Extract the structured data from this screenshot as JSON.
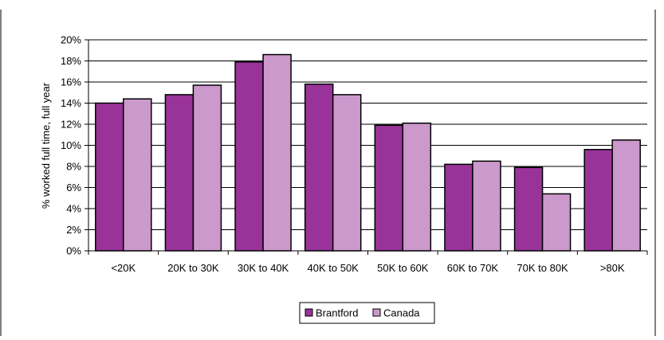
{
  "chart_data": {
    "type": "bar",
    "title": "",
    "xlabel": "",
    "ylabel": "% worked full time, full year",
    "categories": [
      "<20K",
      "20K to 30K",
      "30K to 40K",
      "40K to 50K",
      "50K to 60K",
      "60K to 70K",
      "70K to 80K",
      ">80K"
    ],
    "series": [
      {
        "name": "Brantford",
        "color": "#993399",
        "values": [
          14.0,
          14.8,
          17.9,
          15.8,
          11.9,
          8.2,
          7.9,
          9.6
        ]
      },
      {
        "name": "Canada",
        "color": "#CC99CC",
        "values": [
          14.4,
          15.7,
          18.6,
          14.8,
          12.1,
          8.5,
          5.4,
          10.5
        ]
      }
    ],
    "ylim": [
      0,
      20
    ],
    "ytick_step": 2,
    "ytick_labels": [
      "0%",
      "2%",
      "4%",
      "6%",
      "8%",
      "10%",
      "12%",
      "14%",
      "16%",
      "18%",
      "20%"
    ],
    "grid": true,
    "legend_position": "bottom"
  }
}
